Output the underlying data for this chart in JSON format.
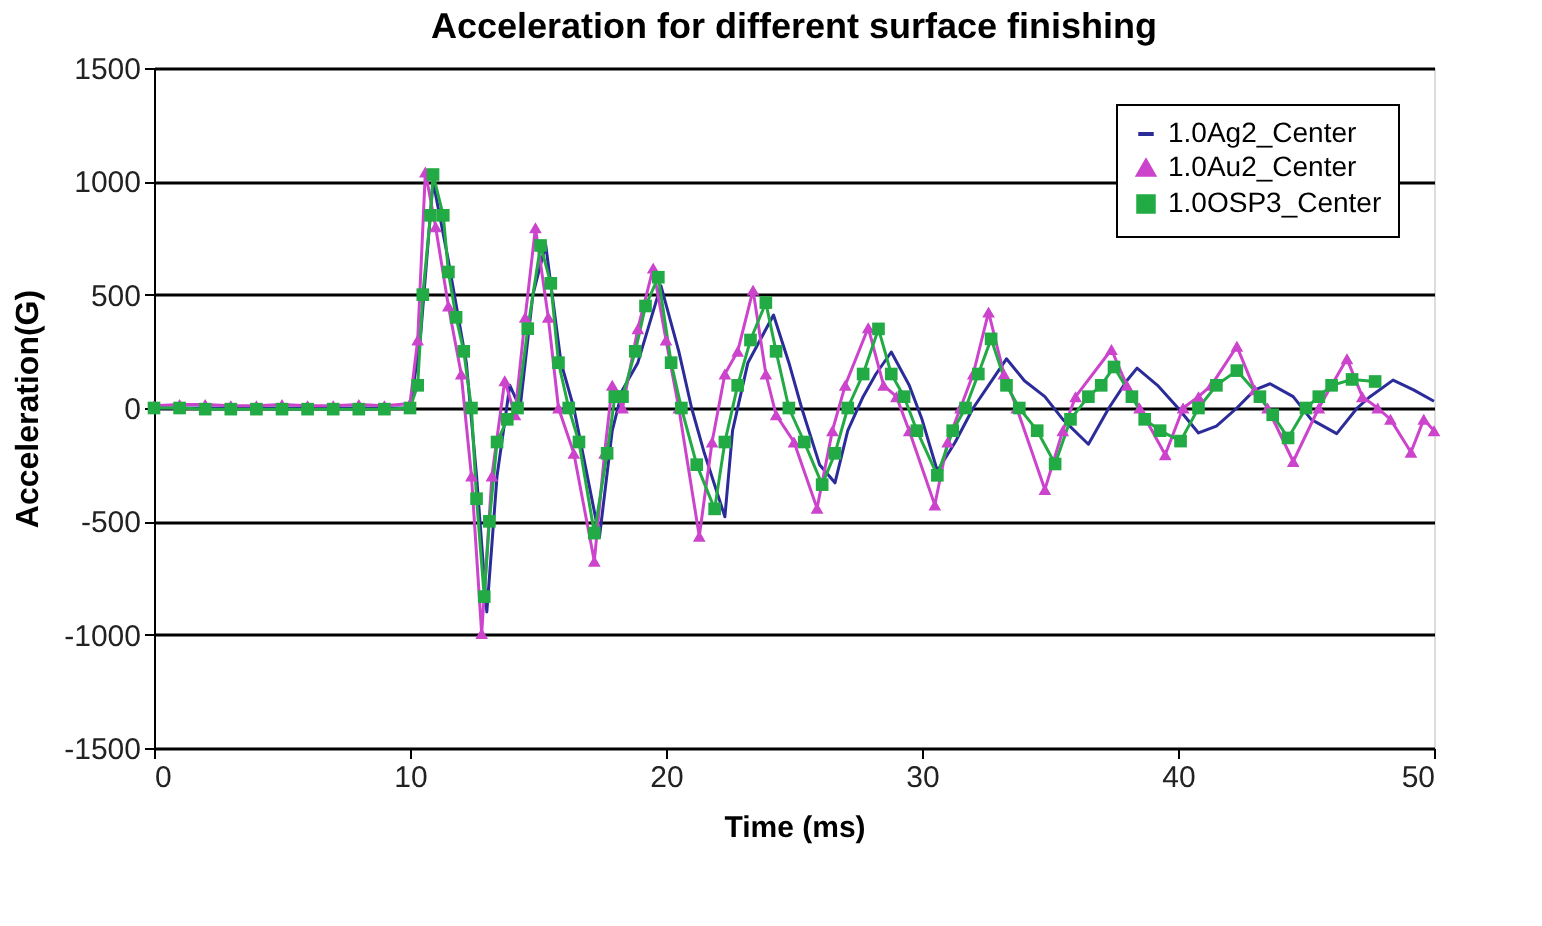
{
  "chart_data": {
    "type": "line",
    "title": "Acceleration for different surface finishing",
    "xlabel": "Time (ms)",
    "ylabel": "Acceleration(G)",
    "xlim": [
      0,
      50
    ],
    "xticks": [
      0,
      10,
      20,
      30,
      40,
      50
    ],
    "ylim": [
      -1500,
      1500
    ],
    "yticks": [
      -1500,
      -1000,
      -500,
      0,
      500,
      1000,
      1500
    ],
    "grid": "y",
    "legend": "top right",
    "line_style": "solid",
    "series": [
      {
        "name": "1.0Ag2_Center",
        "color": "#2b2b9a",
        "marker": "none",
        "x": [
          0,
          10,
          10.4,
          10.9,
          11.5,
          12.2,
          12.6,
          13,
          13.4,
          13.9,
          14.3,
          14.8,
          15.3,
          15.9,
          16.4,
          17.4,
          17.9,
          18.3,
          18.9,
          19.8,
          20.5,
          21,
          21.5,
          22.3,
          22.6,
          23.2,
          24.2,
          24.8,
          25.3,
          26,
          26.6,
          27.1,
          27.7,
          28.2,
          28.8,
          29.5,
          30,
          30.6,
          31.3,
          32,
          32.6,
          33.3,
          34,
          34.8,
          35.5,
          36.5,
          37.3,
          38,
          38.4,
          39.2,
          40,
          40.8,
          41.5,
          42.3,
          43,
          43.6,
          44.5,
          45.2,
          46.2,
          47,
          47.5,
          48.4,
          49.2,
          50
        ],
        "values": [
          0,
          0,
          300,
          1000,
          650,
          200,
          -300,
          -900,
          -300,
          100,
          0,
          500,
          720,
          200,
          0,
          -570,
          -100,
          80,
          200,
          540,
          250,
          0,
          -200,
          -480,
          -100,
          200,
          410,
          200,
          0,
          -250,
          -330,
          -100,
          50,
          150,
          247,
          100,
          -50,
          -278,
          -150,
          0,
          100,
          217,
          120,
          50,
          -50,
          -160,
          0,
          120,
          176,
          100,
          0,
          -110,
          -80,
          0,
          80,
          107,
          50,
          -50,
          -113,
          0,
          50,
          123,
          80,
          30
        ]
      },
      {
        "name": "1.0Au2_Center",
        "color": "#cc44cc",
        "marker": "triangle",
        "x": [
          0,
          1,
          2,
          3,
          4,
          5,
          6,
          7,
          8,
          9,
          10,
          10.3,
          10.6,
          11,
          11.5,
          12,
          12.4,
          12.8,
          13.2,
          13.7,
          14.1,
          14.5,
          14.9,
          15.4,
          15.8,
          16.4,
          17.2,
          17.6,
          17.9,
          18.3,
          18.9,
          19.5,
          20,
          20.5,
          21.3,
          21.8,
          22.3,
          22.8,
          23.4,
          23.9,
          24.3,
          25,
          25.9,
          26.5,
          27,
          27.9,
          28.5,
          29,
          29.5,
          30.5,
          31,
          31.5,
          32,
          32.6,
          33.2,
          33.7,
          34.8,
          35.5,
          36,
          37.4,
          38,
          38.5,
          39.5,
          40.2,
          40.8,
          41.3,
          42.3,
          43,
          43.5,
          44.5,
          45.5,
          46,
          46.6,
          47.2,
          47.8,
          48.3,
          49.1,
          49.6,
          50
        ],
        "values": [
          10,
          15,
          15,
          10,
          10,
          15,
          10,
          10,
          15,
          10,
          20,
          300,
          1041,
          800,
          450,
          150,
          -300,
          -995,
          -300,
          120,
          -30,
          400,
          795,
          400,
          0,
          -200,
          -676,
          -200,
          100,
          0,
          350,
          617,
          300,
          0,
          -566,
          -150,
          150,
          250,
          520,
          150,
          -30,
          -150,
          -442,
          -100,
          100,
          354,
          100,
          50,
          -100,
          -428,
          -150,
          0,
          150,
          423,
          150,
          0,
          -360,
          -100,
          50,
          258,
          100,
          0,
          -206,
          0,
          50,
          100,
          272,
          80,
          0,
          -236,
          0,
          100,
          217,
          50,
          0,
          -50,
          -195,
          -50,
          -100
        ]
      },
      {
        "name": "1.0OSP3_Center",
        "color": "#22aa44",
        "marker": "square",
        "x": [
          0,
          1,
          2,
          3,
          4,
          5,
          6,
          7,
          8,
          9,
          10,
          10.3,
          10.5,
          10.8,
          10.9,
          11.3,
          11.5,
          11.8,
          12.1,
          12.4,
          12.6,
          12.9,
          13.1,
          13.4,
          13.8,
          14.2,
          14.6,
          15.1,
          15.5,
          15.8,
          16.2,
          16.6,
          17.2,
          17.7,
          18,
          18.3,
          18.8,
          19.2,
          19.7,
          20.2,
          20.6,
          21.2,
          21.9,
          22.3,
          22.8,
          23.3,
          23.9,
          24.3,
          24.8,
          25.4,
          26.1,
          26.6,
          27.1,
          27.7,
          28.3,
          28.8,
          29.3,
          29.8,
          30.6,
          31.2,
          31.7,
          32.2,
          32.7,
          33.3,
          33.8,
          34.5,
          35.2,
          35.8,
          36.5,
          37,
          37.5,
          38.2,
          38.7,
          39.3,
          40.1,
          40.8,
          41.5,
          42.3,
          43.2,
          43.7,
          44.3,
          45,
          45.5,
          46,
          46.8,
          47.7
        ],
        "values": [
          0,
          0,
          -5,
          -5,
          -5,
          -5,
          -5,
          -5,
          -5,
          -5,
          0,
          100,
          500,
          850,
          1030,
          850,
          600,
          400,
          250,
          0,
          -400,
          -832,
          -500,
          -150,
          -50,
          0,
          350,
          717,
          550,
          200,
          0,
          -150,
          -552,
          -200,
          50,
          50,
          250,
          450,
          577,
          200,
          0,
          -250,
          -445,
          -150,
          100,
          300,
          465,
          250,
          0,
          -150,
          -338,
          -200,
          0,
          150,
          349,
          150,
          50,
          -100,
          -297,
          -100,
          0,
          150,
          305,
          100,
          0,
          -100,
          -247,
          -50,
          50,
          100,
          181,
          50,
          -50,
          -100,
          -146,
          0,
          100,
          165,
          50,
          -30,
          -132,
          0,
          50,
          100,
          126,
          117
        ]
      }
    ]
  }
}
